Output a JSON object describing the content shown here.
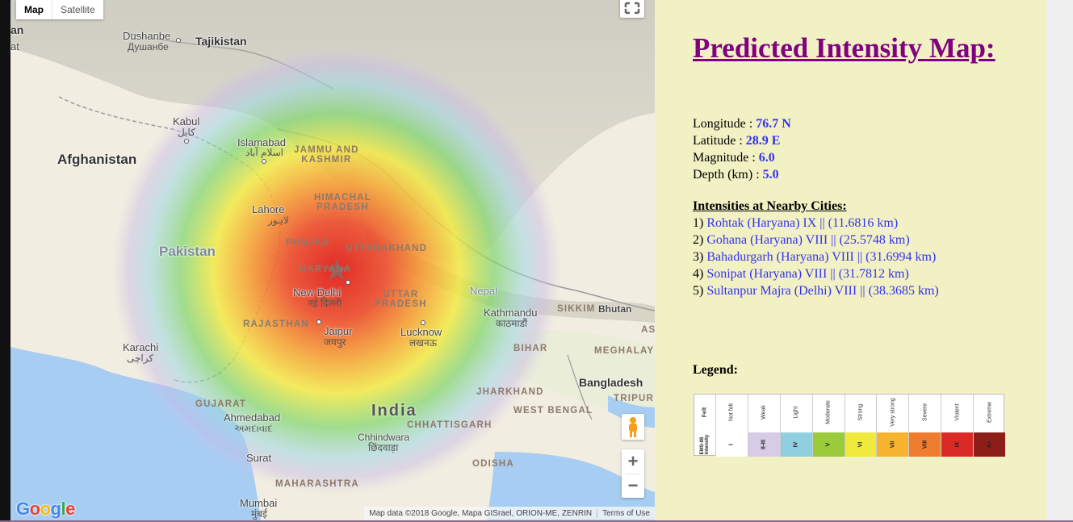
{
  "map": {
    "type_control": {
      "map_label": "Map",
      "satellite_label": "Satellite"
    },
    "labels": {
      "countries": {
        "afghanistan": "Afghanistan",
        "pakistan": "Pakistan",
        "india": "India",
        "tajikistan": "Tajikistan",
        "bangladesh": "Bangladesh",
        "nepal": "Nepal",
        "bhutan": "Bhutan",
        "partial_left_1": "an",
        "partial_left_2": "at"
      },
      "states": {
        "jammu_kashmir": "JAMMU AND\nKASHMIR",
        "himachal": "HIMACHAL\nPRADESH",
        "punjab": "PUNJAB",
        "uttarakhand": "UTTARAKHAND",
        "haryana": "HARYANA",
        "uttar_pradesh": "UTTAR\nPRADESH",
        "rajasthan": "RAJASTHAN",
        "gujarat": "GUJARAT",
        "bihar": "BIHAR",
        "jharkhand": "JHARKHAND",
        "west_bengal": "WEST BENGAL",
        "meghalaya": "MEGHALAY",
        "chhattisgarh": "CHHATTISGARH",
        "maharashtra": "MAHARASHTRA",
        "odisha": "ODISHA",
        "sikkim": "SIKKIM",
        "tripura": "TRIPUR",
        "as": "AS"
      },
      "cities": {
        "dushanbe": "Dushanbe",
        "dushanbe_native": "Душанбе",
        "kabul": "Kabul",
        "kabul_native": "کابل",
        "islamabad": "Islamabad",
        "islamabad_native": "اسلام آباد",
        "lahore": "Lahore",
        "lahore_native": "لاہور",
        "new_delhi": "New Delhi",
        "new_delhi_native": "नई दिल्ली",
        "jaipur": "Jaipur",
        "jaipur_native": "जयपुर",
        "lucknow": "Lucknow",
        "lucknow_native": "लखनऊ",
        "kathmandu": "Kathmandu",
        "kathmandu_native": "काठमाडौं",
        "karachi": "Karachi",
        "karachi_native": "کراچی",
        "ahmedabad": "Ahmedabad",
        "ahmedabad_native": "અમદાવાદ",
        "chhindwara": "Chhindwara",
        "chhindwara_native": "छिंदवाड़ा",
        "surat": "Surat",
        "mumbai": "Mumbai",
        "mumbai_native": "मुंबई"
      }
    },
    "google_logo": "Google",
    "attribution": "Map data ©2018 Google, Mapa GISrael, ORION-ME, ZENRIN",
    "terms": "Terms of Use",
    "zoom_in": "+",
    "zoom_out": "−"
  },
  "panel": {
    "title": "Predicted Intensity Map:",
    "longitude_label": "Longitude :",
    "longitude_value": "76.7 N",
    "latitude_label": "Latitude :",
    "latitude_value": "28.9 E",
    "magnitude_label": "Magnitude :",
    "magnitude_value": "6.0",
    "depth_label": "Depth (km) :",
    "depth_value": "5.0",
    "cities_title": "Intensities at Nearby Cities:",
    "cities": [
      {
        "num": "1)",
        "text": "Rohtak (Haryana) IX || (11.6816 km)"
      },
      {
        "num": "2)",
        "text": "Gohana (Haryana) VIII || (25.5748 km)"
      },
      {
        "num": "3)",
        "text": "Bahadurgarh (Haryana) VIII || (31.6994 km)"
      },
      {
        "num": "4)",
        "text": "Sonipat (Haryana) VIII || (31.7812 km)"
      },
      {
        "num": "5)",
        "text": "Sultanpur Majra (Delhi) VIII || (38.3685 km)"
      }
    ],
    "legend_title": "Legend:",
    "legend": {
      "header_felt": "Felt",
      "header_scale": "EMS-98 intensity",
      "columns": [
        {
          "felt": "Not felt",
          "intensity": "I",
          "color": "#ffffff"
        },
        {
          "felt": "Weak",
          "intensity": "II-III",
          "color": "#d7cbe6"
        },
        {
          "felt": "Light",
          "intensity": "IV",
          "color": "#8fcfe0"
        },
        {
          "felt": "Moderate",
          "intensity": "V",
          "color": "#9bcb3b"
        },
        {
          "felt": "Strong",
          "intensity": "VI",
          "color": "#f1ea3c"
        },
        {
          "felt": "Very strong",
          "intensity": "VII",
          "color": "#f8b32e"
        },
        {
          "felt": "Severe",
          "intensity": "VIII",
          "color": "#ef7d2f"
        },
        {
          "felt": "Violent",
          "intensity": "IX",
          "color": "#d92a25"
        },
        {
          "felt": "Extreme",
          "intensity": "X+",
          "color": "#8d1d18"
        }
      ]
    }
  }
}
